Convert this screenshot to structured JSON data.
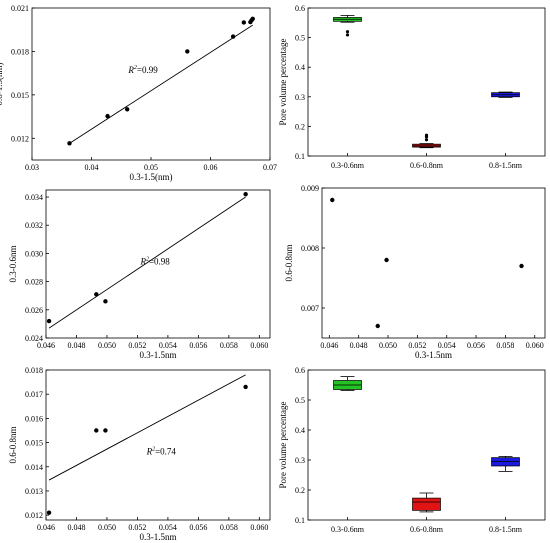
{
  "chart_data": [
    {
      "type": "scatter",
      "xlabel": "0.3-1.5(nm)",
      "ylabel": "0.8-1.5(nm)",
      "xlim": [
        0.03,
        0.07
      ],
      "ylim": [
        0.0105,
        0.021
      ],
      "xticks": [
        0.03,
        0.04,
        0.05,
        0.06,
        0.07
      ],
      "xtick_labels": [
        "0.03",
        "0.04",
        "0.05",
        "0.06",
        "0.07"
      ],
      "yticks": [
        0.012,
        0.015,
        0.018,
        0.021
      ],
      "ytick_labels": [
        "0.012",
        "0.015",
        "0.018",
        "0.021"
      ],
      "x": [
        0.0363,
        0.0427,
        0.046,
        0.0561,
        0.0638,
        0.0656,
        0.0667,
        0.0669,
        0.0671
      ],
      "y": [
        0.01165,
        0.01353,
        0.014,
        0.018,
        0.01903,
        0.02,
        0.02003,
        0.02015,
        0.02025
      ],
      "fit_line": [
        [
          0.0363,
          0.01165
        ],
        [
          0.0671,
          0.01982
        ]
      ],
      "annotation": {
        "prefix": "R",
        "sup": "2",
        "suffix": "=0.99",
        "x": 0.0462,
        "y": 0.0165
      }
    },
    {
      "type": "box",
      "categories": [
        "0.3-0.6nm",
        "0.6-0.8nm",
        "0.8-1.5nm"
      ],
      "ylabel": "Pore volume percentage",
      "ylim": [
        0.1,
        0.6
      ],
      "yticks": [
        0.1,
        0.2,
        0.3,
        0.4,
        0.5,
        0.6
      ],
      "ytick_labels": [
        "0.1",
        "0.2",
        "0.3",
        "0.4",
        "0.5",
        "0.6"
      ],
      "boxes": [
        {
          "color": "#22c322",
          "whisker_low": 0.552,
          "q1": 0.555,
          "median": 0.562,
          "q3": 0.568,
          "whisker_high": 0.575,
          "outliers": [
            0.52,
            0.509
          ]
        },
        {
          "color": "#c81414",
          "whisker_low": 0.128,
          "q1": 0.13,
          "median": 0.134,
          "q3": 0.14,
          "whisker_high": 0.142,
          "outliers": [
            0.155,
            0.17,
            0.165
          ]
        },
        {
          "color": "#1a1adc",
          "whisker_low": 0.298,
          "q1": 0.3,
          "median": 0.307,
          "q3": 0.314,
          "whisker_high": 0.316,
          "outliers": []
        }
      ]
    },
    {
      "type": "scatter",
      "xlabel": "0.3-1.5nm",
      "ylabel": "0.3-0.6nm",
      "xlim": [
        0.046,
        0.0607
      ],
      "ylim": [
        0.024,
        0.0345
      ],
      "xticks": [
        0.046,
        0.048,
        0.05,
        0.052,
        0.054,
        0.056,
        0.058,
        0.06
      ],
      "xtick_labels": [
        "0.046",
        "0.048",
        "0.050",
        "0.052",
        "0.054",
        "0.056",
        "0.058",
        "0.060"
      ],
      "yticks": [
        0.024,
        0.026,
        0.028,
        0.03,
        0.032,
        0.034
      ],
      "ytick_labels": [
        "0.024",
        "0.026",
        "0.028",
        "0.030",
        "0.032",
        "0.034"
      ],
      "x": [
        0.0462,
        0.0493,
        0.0499,
        0.0591
      ],
      "y": [
        0.0252,
        0.0271,
        0.0266,
        0.0342
      ],
      "fit_line": [
        [
          0.0462,
          0.0247
        ],
        [
          0.0591,
          0.034
        ]
      ],
      "annotation": {
        "prefix": "R",
        "sup": "2",
        "suffix": "=0.98",
        "x": 0.0522,
        "y": 0.0292
      }
    },
    {
      "type": "scatter",
      "xlabel": "0.3-1.5nm",
      "ylabel": "0.6-0.8nm",
      "xlim": [
        0.0455,
        0.0607
      ],
      "ylim": [
        0.0065,
        0.009
      ],
      "xticks": [
        0.046,
        0.048,
        0.05,
        0.052,
        0.054,
        0.056,
        0.058,
        0.06
      ],
      "xtick_labels": [
        "0.046",
        "0.048",
        "0.050",
        "0.052",
        "0.054",
        "0.056",
        "0.058",
        "0.060"
      ],
      "yticks": [
        0.007,
        0.008,
        0.009
      ],
      "ytick_labels": [
        "0.007",
        "0.008",
        "0.009"
      ],
      "x": [
        0.0462,
        0.0493,
        0.0499,
        0.0591
      ],
      "y": [
        0.0088,
        0.0067,
        0.0078,
        0.0077
      ]
    },
    {
      "type": "scatter",
      "xlabel": "0.3-1.5nm",
      "ylabel": "0.6-0.8nm",
      "xlim": [
        0.046,
        0.0607
      ],
      "ylim": [
        0.0118,
        0.018
      ],
      "xticks": [
        0.046,
        0.048,
        0.05,
        0.052,
        0.054,
        0.056,
        0.058,
        0.06
      ],
      "xtick_labels": [
        "0.046",
        "0.048",
        "0.050",
        "0.052",
        "0.054",
        "0.056",
        "0.058",
        "0.060"
      ],
      "yticks": [
        0.012,
        0.013,
        0.014,
        0.015,
        0.016,
        0.017,
        0.018
      ],
      "ytick_labels": [
        "0.012",
        "0.013",
        "0.014",
        "0.015",
        "0.016",
        "0.017",
        "0.018"
      ],
      "x": [
        0.0462,
        0.0493,
        0.0499,
        0.0591
      ],
      "y": [
        0.0121,
        0.0155,
        0.0155,
        0.0173
      ],
      "fit_line": [
        [
          0.0462,
          0.01345
        ],
        [
          0.0591,
          0.0178
        ]
      ],
      "annotation": {
        "prefix": "R",
        "sup": "2",
        "suffix": "=0.74",
        "x": 0.0526,
        "y": 0.0145
      }
    },
    {
      "type": "box",
      "categories": [
        "0.3-0.6nm",
        "0.6-0.8nm",
        "0.8-1.5nm"
      ],
      "ylabel": "Pore volume percentage",
      "ylim": [
        0.1,
        0.6
      ],
      "yticks": [
        0.1,
        0.2,
        0.3,
        0.4,
        0.5,
        0.6
      ],
      "ytick_labels": [
        "0.1",
        "0.2",
        "0.3",
        "0.4",
        "0.5",
        "0.6"
      ],
      "boxes": [
        {
          "color": "#22c322",
          "whisker_low": 0.532,
          "q1": 0.535,
          "median": 0.55,
          "q3": 0.565,
          "whisker_high": 0.578,
          "outliers": []
        },
        {
          "color": "#e01414",
          "whisker_low": 0.127,
          "q1": 0.132,
          "median": 0.16,
          "q3": 0.173,
          "whisker_high": 0.19,
          "outliers": []
        },
        {
          "color": "#1a1adc",
          "whisker_low": 0.262,
          "q1": 0.28,
          "median": 0.295,
          "q3": 0.308,
          "whisker_high": 0.312,
          "outliers": []
        }
      ]
    }
  ]
}
